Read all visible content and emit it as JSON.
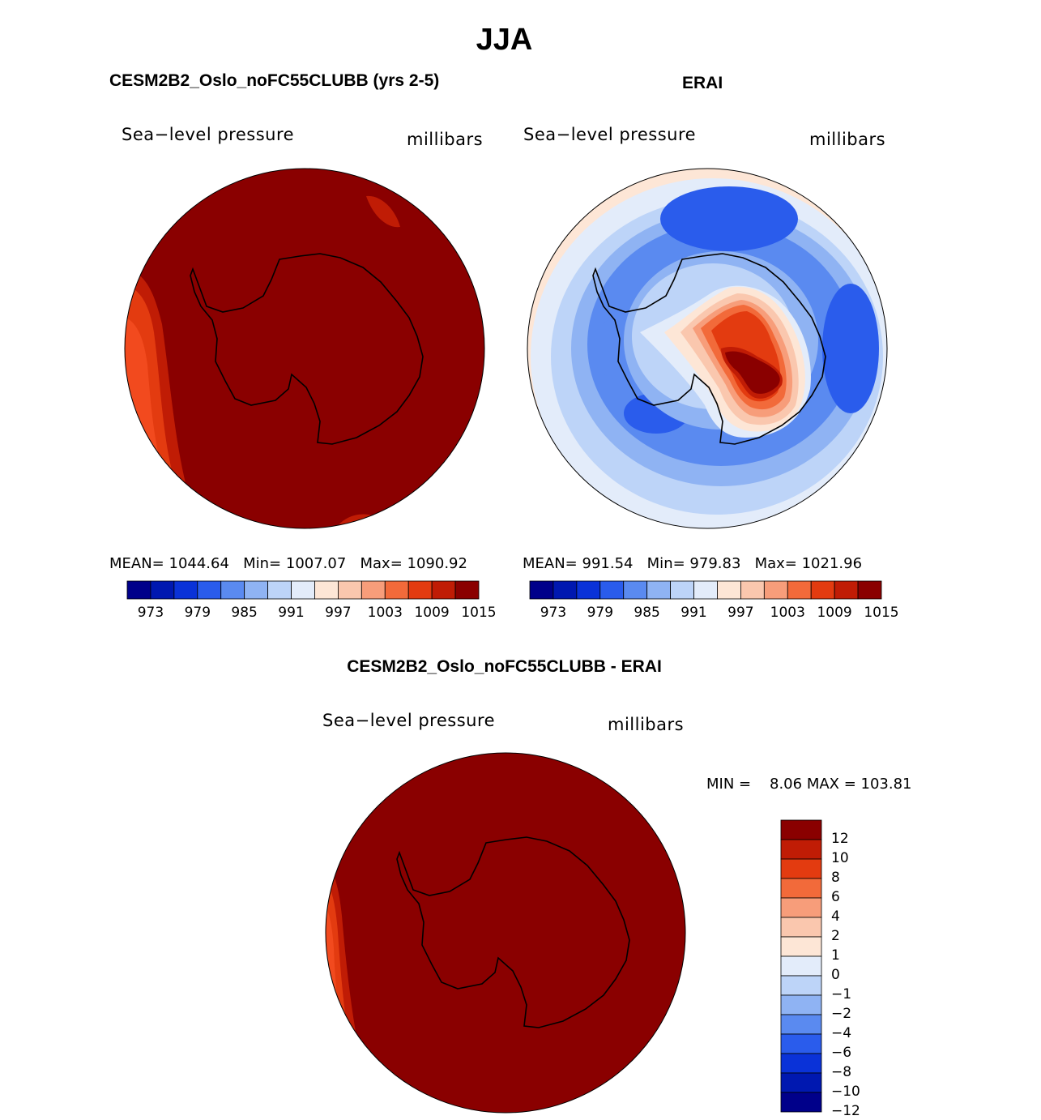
{
  "figure": {
    "title": "JJA",
    "colors": {
      "shades": [
        "#00008a",
        "#0018b0",
        "#0a32d8",
        "#2a5cec",
        "#5a8af0",
        "#8fb3f3",
        "#bdd4f8",
        "#e3ecfa",
        "#fde6d6",
        "#fac7ae",
        "#f79d7a",
        "#f26a3a",
        "#e33b10",
        "#c01c05",
        "#8a0000"
      ],
      "land_outline": "#000000",
      "ocean_bg": "#8a0000"
    }
  },
  "panels": {
    "model": {
      "title": "CESM2B2_Oslo_noFC55CLUBB (yrs 2-5)",
      "variable": "Sea−level pressure",
      "units": "millibars",
      "stats": {
        "mean_label": "MEAN=",
        "mean": "1044.64",
        "min_label": "Min=",
        "min": "1007.07",
        "max_label": "Max=",
        "max": "1090.92"
      }
    },
    "obs": {
      "title": "ERAI",
      "variable": "Sea−level pressure",
      "units": "millibars",
      "stats": {
        "mean_label": "MEAN=",
        "mean": "991.54",
        "min_label": "Min=",
        "min": "979.83",
        "max_label": "Max=",
        "max": "1021.96"
      }
    },
    "diff": {
      "title": "CESM2B2_Oslo_noFC55CLUBB - ERAI",
      "variable": "Sea−level pressure",
      "units": "millibars",
      "stats": {
        "min_label": "MIN =",
        "min": "8.06",
        "max_label": "MAX =",
        "max": "103.81"
      }
    }
  },
  "chart_data": [
    {
      "type": "heatmap",
      "title": "CESM2B2_Oslo_noFC55CLUBB (yrs 2-5)",
      "subtitle": "Sea−level pressure",
      "units": "millibars",
      "projection": "south-polar-stereographic",
      "mean": 1044.64,
      "min": 1007.07,
      "max": 1090.92,
      "colorbar_levels": [
        973,
        976,
        979,
        982,
        985,
        988,
        991,
        994,
        997,
        1000,
        1003,
        1006,
        1009,
        1012,
        1015
      ],
      "colorbar_tick_labels": [
        "973",
        "979",
        "985",
        "991",
        "997",
        "1003",
        "1009",
        "1015"
      ],
      "field_description_value": "> 1015 almost everywhere"
    },
    {
      "type": "heatmap",
      "title": "ERAI",
      "subtitle": "Sea−level pressure",
      "units": "millibars",
      "projection": "south-polar-stereographic",
      "mean": 991.54,
      "min": 979.83,
      "max": 1021.96,
      "colorbar_levels": [
        973,
        976,
        979,
        982,
        985,
        988,
        991,
        994,
        997,
        1000,
        1003,
        1006,
        1009,
        1012,
        1015
      ],
      "colorbar_tick_labels": [
        "973",
        "979",
        "985",
        "991",
        "997",
        "1003",
        "1009",
        "1015"
      ]
    },
    {
      "type": "heatmap",
      "title": "CESM2B2_Oslo_noFC55CLUBB - ERAI",
      "subtitle": "Sea−level pressure",
      "units": "millibars",
      "projection": "south-polar-stereographic",
      "min": 8.06,
      "max": 103.81,
      "colorbar_levels": [
        -12,
        -10,
        -8,
        -6,
        -4,
        -2,
        -1,
        0,
        1,
        2,
        4,
        6,
        8,
        10,
        12
      ],
      "colorbar_tick_labels": [
        "12",
        "10",
        "8",
        "6",
        "4",
        "2",
        "1",
        "0",
        "−1",
        "−2",
        "−4",
        "−6",
        "−8",
        "−10",
        "−12"
      ]
    }
  ]
}
